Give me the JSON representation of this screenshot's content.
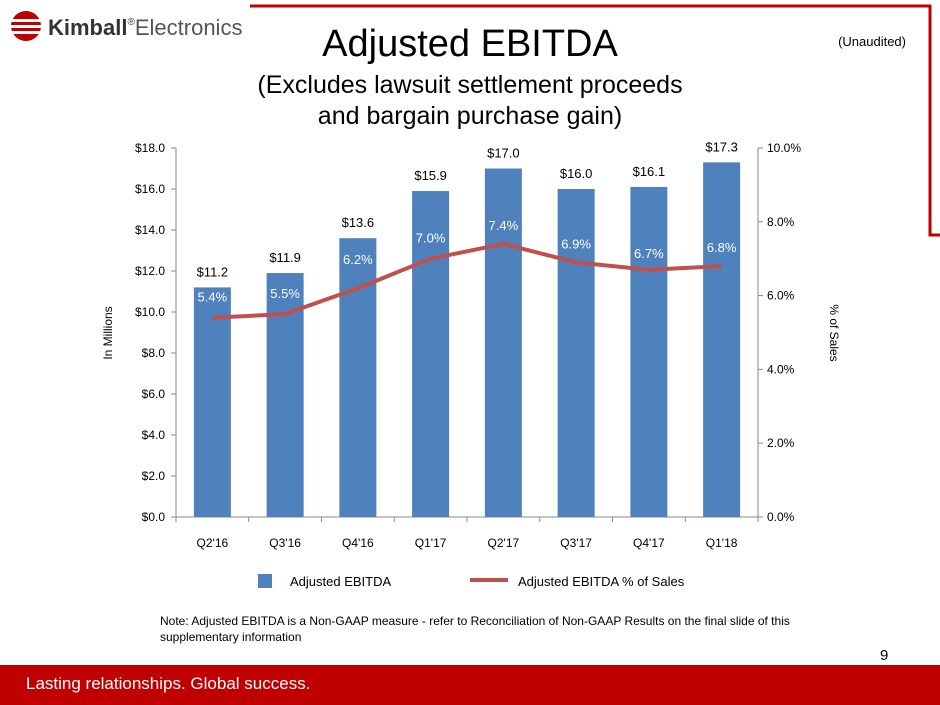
{
  "brand": {
    "bold": "Kimball",
    "mark": "®",
    "light": "Electronics"
  },
  "title": "Adjusted EBITDA",
  "subtitle_line1": "(Excludes lawsuit settlement proceeds",
  "subtitle_line2": "and bargain purchase gain)",
  "unaudited": "(Unaudited)",
  "note_text": "Note:  Adjusted EBITDA is a Non-GAAP measure - refer to Reconciliation of Non-GAAP Results on the final slide of this supplementary information",
  "page_number": "9",
  "footer_text": "Lasting relationships. Global success.",
  "colors": {
    "bar": "#4f81bd",
    "line": "#c0504d",
    "footer": "#c00000",
    "grid": "#d9d9d9"
  },
  "chart_data": {
    "type": "bar+line",
    "categories": [
      "Q2'16",
      "Q3'16",
      "Q4'16",
      "Q1'17",
      "Q2'17",
      "Q3'17",
      "Q4'17",
      "Q1'18"
    ],
    "series": [
      {
        "name": "Adjusted EBITDA",
        "type": "bar",
        "axis": "left",
        "values": [
          11.2,
          11.9,
          13.6,
          15.9,
          17.0,
          16.0,
          16.1,
          17.3
        ],
        "labels": [
          "$11.2",
          "$11.9",
          "$13.6",
          "$15.9",
          "$17.0",
          "$16.0",
          "$16.1",
          "$17.3"
        ]
      },
      {
        "name": "Adjusted EBITDA % of Sales",
        "type": "line",
        "axis": "right",
        "values": [
          5.4,
          5.5,
          6.2,
          7.0,
          7.4,
          6.9,
          6.7,
          6.8
        ],
        "labels": [
          "5.4%",
          "5.5%",
          "6.2%",
          "7.0%",
          "7.4%",
          "6.9%",
          "6.7%",
          "6.8%"
        ]
      }
    ],
    "ylabel": "In Millions",
    "y2label": "% of Sales",
    "ylim": [
      0,
      18
    ],
    "y2lim": [
      0,
      10
    ],
    "yticks": [
      "$0.0",
      "$2.0",
      "$4.0",
      "$6.0",
      "$8.0",
      "$10.0",
      "$12.0",
      "$14.0",
      "$16.0",
      "$18.0"
    ],
    "y2ticks": [
      "0.0%",
      "2.0%",
      "4.0%",
      "6.0%",
      "8.0%",
      "10.0%"
    ],
    "grid": false,
    "legend_position": "bottom"
  }
}
